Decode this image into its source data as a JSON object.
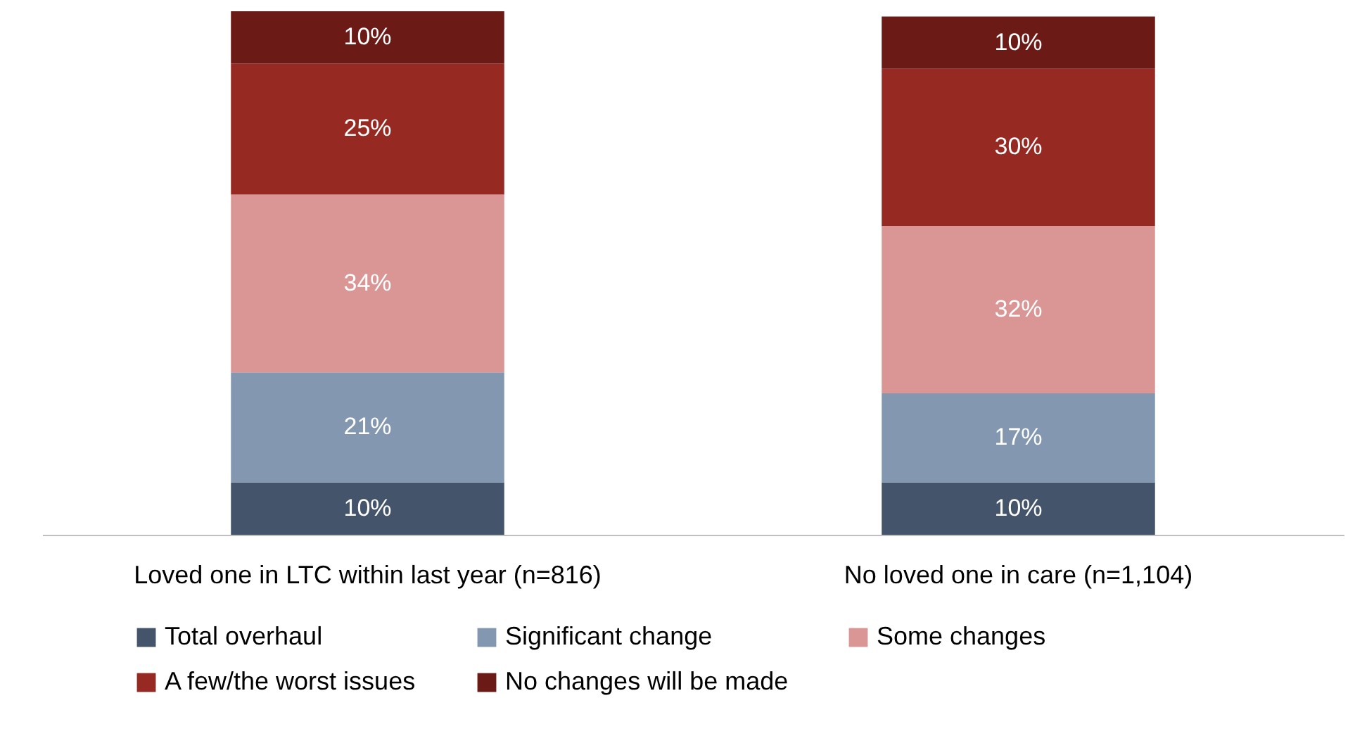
{
  "chart_data": {
    "type": "bar",
    "stacked": true,
    "categories": [
      "Loved one in LTC within last year (n=816)",
      "No loved one in care (n=1,104)"
    ],
    "series": [
      {
        "name": "Total overhaul",
        "color": "#44546a",
        "values": [
          10,
          10
        ],
        "value_labels": [
          "10%",
          "10%"
        ]
      },
      {
        "name": "Significant change",
        "color": "#8497b0",
        "values": [
          21,
          17
        ],
        "value_labels": [
          "21%",
          "17%"
        ]
      },
      {
        "name": "Some changes",
        "color": "#da9694",
        "values": [
          34,
          32
        ],
        "value_labels": [
          "34%",
          "32%"
        ]
      },
      {
        "name": "A few/the worst issues",
        "color": "#962922",
        "values": [
          25,
          30
        ],
        "value_labels": [
          "25%",
          "30%"
        ]
      },
      {
        "name": "No changes will be made",
        "color": "#6b1a16",
        "values": [
          10,
          10
        ],
        "value_labels": [
          "10%",
          "10%"
        ]
      }
    ],
    "legend": "bottom",
    "grid": false
  }
}
